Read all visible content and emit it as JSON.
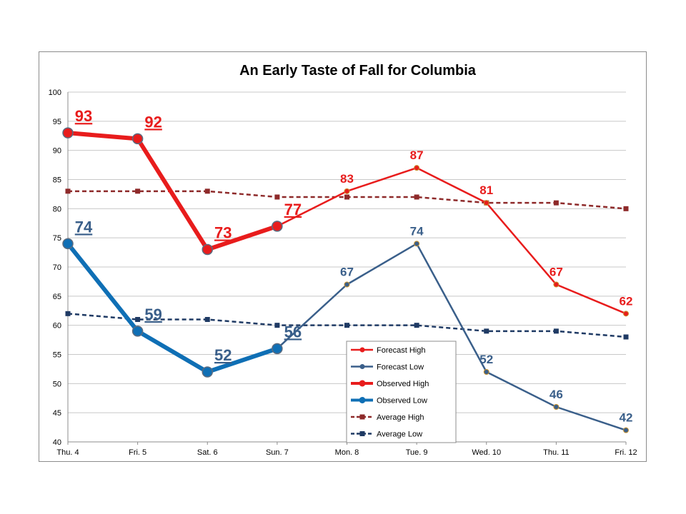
{
  "chart_data": {
    "type": "line",
    "title": "An Early Taste of Fall for Columbia",
    "xlabel": "",
    "ylabel": "",
    "categories": [
      "Thu. 4",
      "Fri. 5",
      "Sat. 6",
      "Sun. 7",
      "Mon. 8",
      "Tue. 9",
      "Wed. 10",
      "Thu. 11",
      "Fri. 12"
    ],
    "ylim": [
      40,
      100
    ],
    "yticks": [
      40,
      45,
      50,
      55,
      60,
      65,
      70,
      75,
      80,
      85,
      90,
      95,
      100
    ],
    "grid": true,
    "legend_position": "bottom-center",
    "series": [
      {
        "name": "Forecast High",
        "color": "#e81c1c",
        "style": "solid",
        "marker": "circle",
        "width": "normal",
        "values": [
          null,
          null,
          null,
          77,
          83,
          87,
          81,
          67,
          62
        ],
        "labels": [
          null,
          null,
          null,
          null,
          "83",
          "87",
          "81",
          "67",
          "62"
        ],
        "label_style": "normal"
      },
      {
        "name": "Forecast Low",
        "color": "#3a5f8a",
        "style": "solid",
        "marker": "circle",
        "width": "normal",
        "values": [
          null,
          null,
          null,
          56,
          67,
          74,
          52,
          46,
          42
        ],
        "labels": [
          null,
          null,
          null,
          null,
          "67",
          "74",
          "52",
          "46",
          "42"
        ],
        "label_style": "normal"
      },
      {
        "name": "Observed High",
        "color": "#e81c1c",
        "style": "solid",
        "marker": "circle",
        "width": "thick",
        "values": [
          93,
          92,
          73,
          77,
          null,
          null,
          null,
          null,
          null
        ],
        "labels": [
          "93",
          "92",
          "73",
          "77",
          null,
          null,
          null,
          null,
          null
        ],
        "label_style": "underlined"
      },
      {
        "name": "Observed Low",
        "color": "#0f6fb5",
        "style": "solid",
        "marker": "circle",
        "width": "thick",
        "values": [
          74,
          59,
          52,
          56,
          null,
          null,
          null,
          null,
          null
        ],
        "labels": [
          "74",
          "59",
          "52",
          "56",
          null,
          null,
          null,
          null,
          null
        ],
        "label_style": "underlined"
      },
      {
        "name": "Average High",
        "color": "#8e2a2a",
        "style": "dashed",
        "marker": "square",
        "width": "normal",
        "values": [
          83,
          83,
          83,
          82,
          82,
          82,
          81,
          81,
          80
        ],
        "labels": []
      },
      {
        "name": "Average Low",
        "color": "#1f3a64",
        "style": "dashed",
        "marker": "square",
        "width": "normal",
        "values": [
          62,
          61,
          61,
          60,
          60,
          60,
          59,
          59,
          58
        ],
        "labels": []
      }
    ]
  }
}
